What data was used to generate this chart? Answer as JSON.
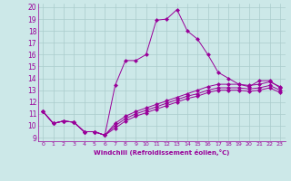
{
  "xlabel": "Windchill (Refroidissement éolien,°C)",
  "xlim": [
    -0.5,
    23.5
  ],
  "ylim": [
    8.7,
    20.3
  ],
  "yticks": [
    9,
    10,
    11,
    12,
    13,
    14,
    15,
    16,
    17,
    18,
    19,
    20
  ],
  "xticks": [
    0,
    1,
    2,
    3,
    4,
    5,
    6,
    7,
    8,
    9,
    10,
    11,
    12,
    13,
    14,
    15,
    16,
    17,
    18,
    19,
    20,
    21,
    22,
    23
  ],
  "bg_color": "#cce8e8",
  "line_color": "#990099",
  "grid_color": "#aacccc",
  "line1_x": [
    0,
    1,
    2,
    3,
    4,
    5,
    6,
    7,
    8,
    9,
    10,
    11,
    12,
    13,
    14,
    15,
    16,
    17,
    18,
    19,
    20,
    21,
    22,
    23
  ],
  "line1_y": [
    11.2,
    10.2,
    10.4,
    10.3,
    9.5,
    9.5,
    9.2,
    13.4,
    15.5,
    15.5,
    16.0,
    18.9,
    19.0,
    19.8,
    18.0,
    17.3,
    16.0,
    14.5,
    14.0,
    13.5,
    13.3,
    13.8,
    13.8,
    13.2
  ],
  "line2_x": [
    0,
    1,
    2,
    3,
    4,
    5,
    6,
    7,
    8,
    9,
    10,
    11,
    12,
    13,
    14,
    15,
    16,
    17,
    18,
    19,
    20,
    21,
    22,
    23
  ],
  "line2_y": [
    11.2,
    10.2,
    10.4,
    10.3,
    9.5,
    9.5,
    9.2,
    10.2,
    10.8,
    11.2,
    11.5,
    11.8,
    12.1,
    12.4,
    12.7,
    13.0,
    13.3,
    13.5,
    13.5,
    13.5,
    13.4,
    13.5,
    13.7,
    13.3
  ],
  "line3_x": [
    0,
    1,
    2,
    3,
    4,
    5,
    6,
    7,
    8,
    9,
    10,
    11,
    12,
    13,
    14,
    15,
    16,
    17,
    18,
    19,
    20,
    21,
    22,
    23
  ],
  "line3_y": [
    11.2,
    10.2,
    10.4,
    10.3,
    9.5,
    9.5,
    9.2,
    10.0,
    10.6,
    11.0,
    11.3,
    11.6,
    11.9,
    12.2,
    12.5,
    12.7,
    13.0,
    13.2,
    13.2,
    13.2,
    13.1,
    13.2,
    13.4,
    13.0
  ],
  "line4_x": [
    0,
    1,
    2,
    3,
    4,
    5,
    6,
    7,
    8,
    9,
    10,
    11,
    12,
    13,
    14,
    15,
    16,
    17,
    18,
    19,
    20,
    21,
    22,
    23
  ],
  "line4_y": [
    11.2,
    10.2,
    10.4,
    10.3,
    9.5,
    9.5,
    9.2,
    9.8,
    10.4,
    10.8,
    11.1,
    11.4,
    11.7,
    12.0,
    12.3,
    12.5,
    12.8,
    13.0,
    13.0,
    13.0,
    12.9,
    13.0,
    13.2,
    12.8
  ]
}
